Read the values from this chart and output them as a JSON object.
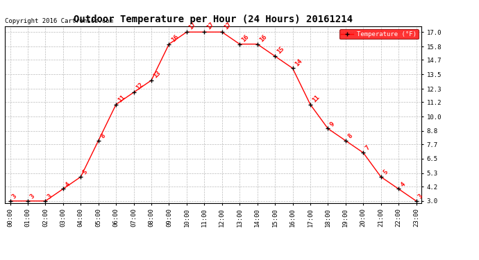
{
  "hours": [
    "00:00",
    "01:00",
    "02:00",
    "03:00",
    "04:00",
    "05:00",
    "06:00",
    "07:00",
    "08:00",
    "09:00",
    "10:00",
    "11:00",
    "12:00",
    "13:00",
    "14:00",
    "15:00",
    "16:00",
    "17:00",
    "18:00",
    "19:00",
    "20:00",
    "21:00",
    "22:00",
    "23:00"
  ],
  "temps": [
    3,
    3,
    3,
    4,
    5,
    8,
    11,
    12,
    13,
    16,
    17,
    17,
    17,
    16,
    16,
    15,
    14,
    11,
    9,
    8,
    7,
    5,
    4,
    3
  ],
  "title": "Outdoor Temperature per Hour (24 Hours) 20161214",
  "copyright": "Copyright 2016 Cartronics.com",
  "legend_label": "Temperature (°F)",
  "line_color": "red",
  "marker_color": "black",
  "label_color": "red",
  "bg_color": "#ffffff",
  "grid_color": "#bbbbbb",
  "ylim_min": 3.0,
  "ylim_max": 17.0,
  "yticks": [
    3.0,
    4.2,
    5.3,
    6.5,
    7.7,
    8.8,
    10.0,
    11.2,
    12.3,
    13.5,
    14.7,
    15.8,
    17.0
  ]
}
